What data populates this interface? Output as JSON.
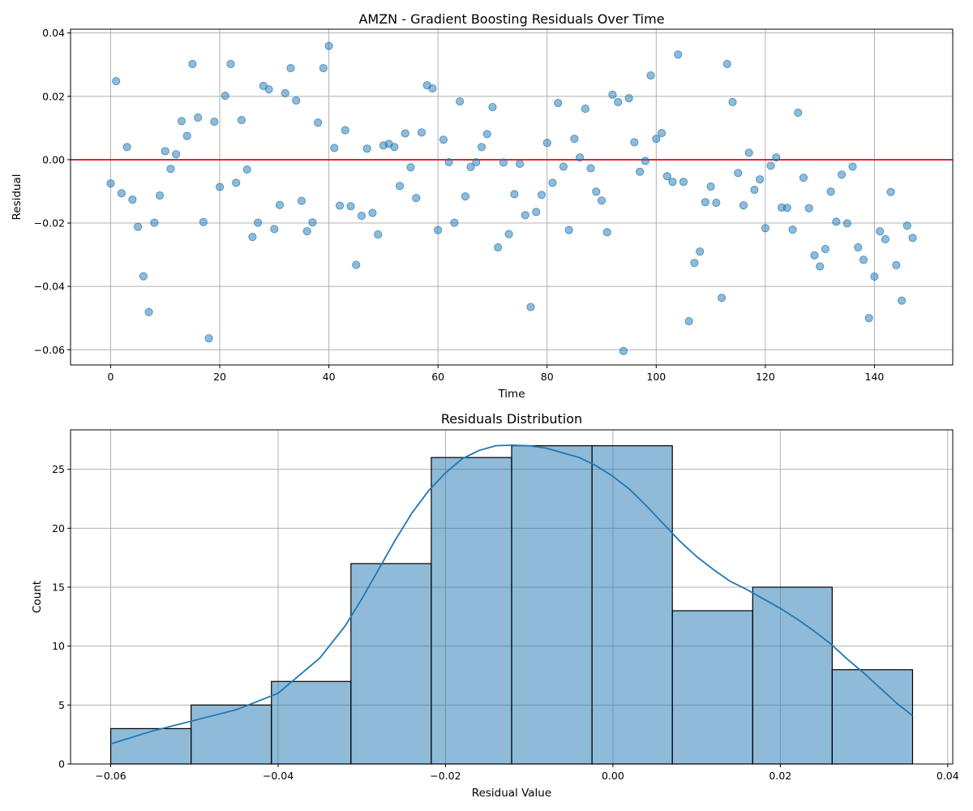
{
  "chart_data": [
    {
      "type": "scatter",
      "title": "AMZN - Gradient Boosting Residuals Over Time",
      "xlabel": "Time",
      "ylabel": "Residual",
      "xlim": [
        -7.35,
        154.35
      ],
      "ylim": [
        -0.0648,
        0.0412
      ],
      "xticks": [
        0,
        20,
        40,
        60,
        80,
        100,
        120,
        140
      ],
      "yticks": [
        -0.06,
        -0.04,
        -0.02,
        0.0,
        0.02,
        0.04
      ],
      "xtick_labels": [
        "0",
        "20",
        "40",
        "60",
        "80",
        "100",
        "120",
        "140"
      ],
      "ytick_labels": [
        "−0.06",
        "−0.04",
        "−0.02",
        "0.00",
        "0.02",
        "0.04"
      ],
      "grid": true,
      "point_color": "#1f77b4",
      "point_alpha": 0.5,
      "reference_line": {
        "y": 0,
        "color": "#e31a1c"
      },
      "x": [
        0,
        1,
        2,
        3,
        4,
        5,
        6,
        7,
        8,
        9,
        10,
        11,
        12,
        13,
        14,
        15,
        16,
        17,
        18,
        19,
        20,
        21,
        22,
        23,
        24,
        25,
        26,
        27,
        28,
        29,
        30,
        31,
        32,
        33,
        34,
        35,
        36,
        37,
        38,
        39,
        40,
        41,
        42,
        43,
        44,
        45,
        46,
        47,
        48,
        49,
        50,
        51,
        52,
        53,
        54,
        55,
        56,
        57,
        58,
        59,
        60,
        61,
        62,
        63,
        64,
        65,
        66,
        67,
        68,
        69,
        70,
        71,
        72,
        73,
        74,
        75,
        76,
        77,
        78,
        79,
        80,
        81,
        82,
        83,
        84,
        85,
        86,
        87,
        88,
        89,
        90,
        91,
        92,
        93,
        94,
        95,
        96,
        97,
        98,
        99,
        100,
        101,
        102,
        103,
        104,
        105,
        106,
        107,
        108,
        109,
        110,
        111,
        112,
        113,
        114,
        115,
        116,
        117,
        118,
        119,
        120,
        121,
        122,
        123,
        124,
        125,
        126,
        127,
        128,
        129,
        130,
        131,
        132,
        133,
        134,
        135,
        136,
        137,
        138,
        139,
        140,
        141,
        142,
        143,
        144,
        145,
        146,
        147
      ],
      "y": [
        -0.0075,
        0.0248,
        -0.0106,
        0.004,
        -0.0126,
        -0.0212,
        -0.0368,
        -0.0481,
        -0.0199,
        -0.0113,
        0.0027,
        -0.0029,
        0.0017,
        0.0122,
        0.0075,
        0.0302,
        0.0133,
        -0.0197,
        -0.0564,
        0.012,
        -0.0086,
        0.0202,
        0.0302,
        -0.0073,
        0.0125,
        -0.0031,
        -0.0244,
        -0.0199,
        0.0233,
        0.0222,
        -0.0219,
        -0.0143,
        0.021,
        0.0289,
        0.0187,
        -0.013,
        -0.0226,
        -0.0198,
        0.0117,
        0.0289,
        0.0359,
        0.0037,
        -0.0145,
        0.0093,
        -0.0147,
        -0.0332,
        -0.0177,
        0.0035,
        -0.0168,
        -0.0236,
        0.0045,
        0.005,
        0.004,
        -0.0083,
        0.0083,
        -0.0024,
        -0.0121,
        0.0086,
        0.0235,
        0.0225,
        -0.0222,
        0.0063,
        -0.0008,
        -0.0199,
        0.0184,
        -0.0116,
        -0.0023,
        -0.0008,
        0.004,
        0.0081,
        0.0166,
        -0.0277,
        -0.0009,
        -0.0235,
        -0.0109,
        -0.0013,
        -0.0175,
        -0.0465,
        -0.0165,
        -0.0111,
        0.0053,
        -0.0073,
        0.0179,
        -0.0022,
        -0.0222,
        0.0066,
        0.0007,
        0.0161,
        -0.0027,
        -0.0101,
        -0.0129,
        -0.0229,
        0.0205,
        0.0182,
        -0.0604,
        0.0194,
        0.0055,
        -0.0038,
        -0.0004,
        0.0266,
        0.0066,
        0.0084,
        -0.0052,
        -0.007,
        0.0332,
        -0.007,
        -0.051,
        -0.0326,
        -0.029,
        -0.0134,
        -0.0085,
        -0.0136,
        -0.0436,
        0.0302,
        0.0182,
        -0.0042,
        -0.0144,
        0.0022,
        -0.0095,
        -0.0062,
        -0.0216,
        -0.0019,
        0.0007,
        -0.0151,
        -0.0152,
        -0.0221,
        0.0148,
        -0.0057,
        -0.0153,
        -0.0302,
        -0.0337,
        -0.0282,
        -0.0101,
        -0.0196,
        -0.0047,
        -0.0201,
        -0.0022,
        -0.0277,
        -0.0316,
        -0.05,
        -0.0369,
        -0.0226,
        -0.0251,
        -0.0102,
        -0.0333,
        -0.0445,
        -0.0208,
        -0.0247
      ]
    },
    {
      "type": "bar",
      "subtype": "histogram_with_kde",
      "title": "Residuals Distribution",
      "xlabel": "Residual Value",
      "ylabel": "Count",
      "xlim": [
        -0.0648,
        0.0406
      ],
      "ylim": [
        0,
        28.35
      ],
      "xticks": [
        -0.06,
        -0.04,
        -0.02,
        0.0,
        0.02,
        0.04
      ],
      "yticks": [
        0,
        5,
        10,
        15,
        20,
        25
      ],
      "xtick_labels": [
        "−0.06",
        "−0.04",
        "−0.02",
        "0.00",
        "0.02",
        "0.04"
      ],
      "ytick_labels": [
        "0",
        "5",
        "10",
        "15",
        "20",
        "25"
      ],
      "grid": true,
      "bar_color": "#1f77b4",
      "bar_alpha": 0.5,
      "edge_color": "#000000",
      "kde_color": "#1f77b4",
      "bin_edges": [
        -0.06,
        -0.0504,
        -0.0408,
        -0.0313,
        -0.0217,
        -0.0121,
        -0.0025,
        0.0071,
        0.0167,
        0.0262,
        0.0358
      ],
      "counts": [
        3,
        5,
        7,
        17,
        26,
        27,
        27,
        13,
        15,
        8
      ],
      "kde_x": [
        -0.06,
        -0.055,
        -0.05,
        -0.045,
        -0.04,
        -0.035,
        -0.032,
        -0.03,
        -0.028,
        -0.026,
        -0.024,
        -0.022,
        -0.02,
        -0.018,
        -0.016,
        -0.014,
        -0.012,
        -0.01,
        -0.008,
        -0.006,
        -0.004,
        -0.002,
        0.0,
        0.002,
        0.004,
        0.006,
        0.008,
        0.01,
        0.012,
        0.014,
        0.016,
        0.018,
        0.02,
        0.022,
        0.024,
        0.026,
        0.028,
        0.03,
        0.032,
        0.034,
        0.0358
      ],
      "kde_y": [
        1.7,
        2.8,
        3.7,
        4.6,
        6.0,
        9.0,
        11.7,
        14.0,
        16.5,
        19.0,
        21.3,
        23.2,
        24.7,
        25.9,
        26.6,
        27.0,
        27.05,
        27.0,
        26.8,
        26.4,
        26.0,
        25.3,
        24.4,
        23.3,
        21.9,
        20.4,
        18.9,
        17.6,
        16.5,
        15.5,
        14.8,
        14.0,
        13.2,
        12.3,
        11.3,
        10.2,
        8.9,
        7.7,
        6.4,
        5.1,
        4.1
      ]
    }
  ]
}
